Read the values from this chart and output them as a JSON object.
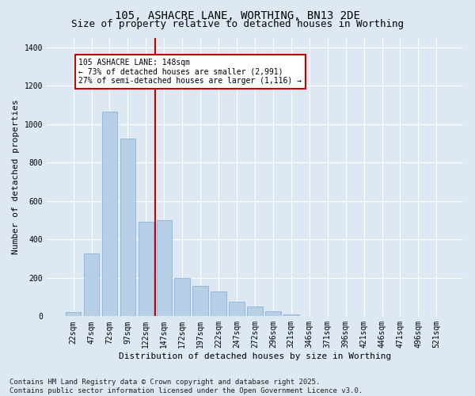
{
  "title": "105, ASHACRE LANE, WORTHING, BN13 2DE",
  "subtitle": "Size of property relative to detached houses in Worthing",
  "xlabel": "Distribution of detached houses by size in Worthing",
  "ylabel": "Number of detached properties",
  "categories": [
    "22sqm",
    "47sqm",
    "72sqm",
    "97sqm",
    "122sqm",
    "147sqm",
    "172sqm",
    "197sqm",
    "222sqm",
    "247sqm",
    "272sqm",
    "296sqm",
    "321sqm",
    "346sqm",
    "371sqm",
    "396sqm",
    "421sqm",
    "446sqm",
    "471sqm",
    "496sqm",
    "521sqm"
  ],
  "values": [
    20,
    325,
    1065,
    925,
    490,
    500,
    200,
    160,
    130,
    75,
    50,
    25,
    10,
    0,
    0,
    0,
    0,
    0,
    0,
    0,
    0
  ],
  "bar_color": "#b8cfe8",
  "bar_edge_color": "#7aadd4",
  "vline_color": "#cc0000",
  "vline_x_index": 5,
  "annotation_text": "105 ASHACRE LANE: 148sqm\n← 73% of detached houses are smaller (2,991)\n27% of semi-detached houses are larger (1,116) →",
  "annotation_box_facecolor": "#ffffff",
  "annotation_box_edgecolor": "#cc0000",
  "ylim": [
    0,
    1450
  ],
  "yticks": [
    0,
    200,
    400,
    600,
    800,
    1000,
    1200,
    1400
  ],
  "footer": "Contains HM Land Registry data © Crown copyright and database right 2025.\nContains public sector information licensed under the Open Government Licence v3.0.",
  "bg_color": "#dde8f3",
  "plot_bg_color": "#dde8f3",
  "title_fontsize": 10,
  "subtitle_fontsize": 9,
  "axis_label_fontsize": 8,
  "tick_fontsize": 7,
  "annotation_fontsize": 7,
  "footer_fontsize": 6.5
}
